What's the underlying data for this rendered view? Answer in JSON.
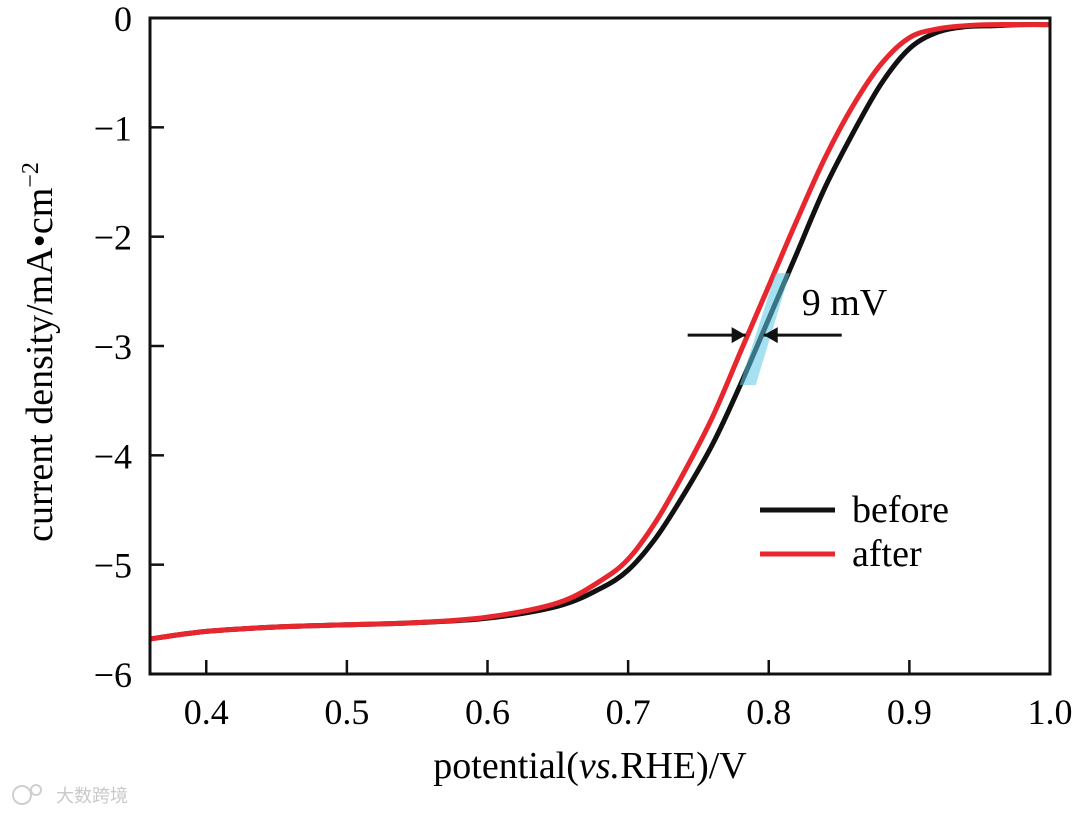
{
  "chart_data": {
    "type": "line",
    "title": "",
    "xlabel": "potential(",
    "xlabel_italic": "vs.",
    "xlabel_tail": "RHE)/V",
    "ylabel": "current density/mA•cm",
    "ylabel_sup": "−2",
    "xlim": [
      0.36,
      1.0
    ],
    "ylim": [
      -6,
      0
    ],
    "x_ticks": [
      0.4,
      0.5,
      0.6,
      0.7,
      0.8,
      0.9,
      1.0
    ],
    "x_tick_labels": [
      "0.4",
      "0.5",
      "0.6",
      "0.7",
      "0.8",
      "0.9",
      "1.0"
    ],
    "y_ticks": [
      0,
      -1,
      -2,
      -3,
      -4,
      -5,
      -6
    ],
    "y_tick_labels": [
      "0",
      "−1",
      "−2",
      "−3",
      "−4",
      "−5",
      "−6"
    ],
    "grid": false,
    "legend_position": "bottom-right",
    "series": [
      {
        "name": "before",
        "color": "#111111",
        "x": [
          0.36,
          0.4,
          0.45,
          0.5,
          0.55,
          0.6,
          0.65,
          0.68,
          0.7,
          0.72,
          0.74,
          0.76,
          0.78,
          0.8,
          0.82,
          0.84,
          0.86,
          0.88,
          0.9,
          0.92,
          0.94,
          0.96,
          0.98,
          1.0
        ],
        "y": [
          -5.68,
          -5.61,
          -5.57,
          -5.55,
          -5.53,
          -5.49,
          -5.38,
          -5.22,
          -5.05,
          -4.75,
          -4.35,
          -3.9,
          -3.35,
          -2.75,
          -2.15,
          -1.55,
          -1.05,
          -0.6,
          -0.28,
          -0.13,
          -0.08,
          -0.07,
          -0.06,
          -0.06
        ]
      },
      {
        "name": "after",
        "color": "#e8262d",
        "x": [
          0.36,
          0.4,
          0.45,
          0.5,
          0.55,
          0.6,
          0.65,
          0.68,
          0.7,
          0.72,
          0.74,
          0.76,
          0.78,
          0.8,
          0.82,
          0.84,
          0.86,
          0.88,
          0.9,
          0.92,
          0.94,
          0.96,
          0.98,
          1.0
        ],
        "y": [
          -5.68,
          -5.61,
          -5.57,
          -5.55,
          -5.53,
          -5.48,
          -5.35,
          -5.15,
          -4.95,
          -4.6,
          -4.15,
          -3.65,
          -3.05,
          -2.45,
          -1.85,
          -1.28,
          -0.8,
          -0.42,
          -0.18,
          -0.1,
          -0.07,
          -0.06,
          -0.06,
          -0.06
        ]
      }
    ],
    "annotations": [
      {
        "text": "9 mV",
        "shift_mV": 9,
        "at_current": -2.9,
        "highlight_color": "#5bc8e6"
      }
    ]
  },
  "watermark": "大数跨境"
}
